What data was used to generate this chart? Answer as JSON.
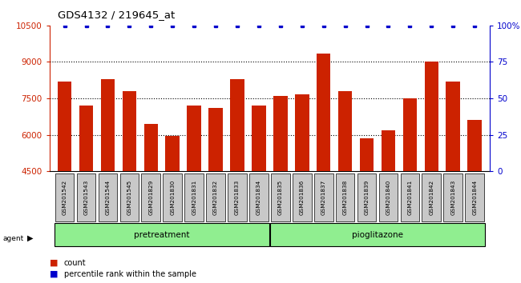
{
  "title": "GDS4132 / 219645_at",
  "samples": [
    "GSM201542",
    "GSM201543",
    "GSM201544",
    "GSM201545",
    "GSM201829",
    "GSM201830",
    "GSM201831",
    "GSM201832",
    "GSM201833",
    "GSM201834",
    "GSM201835",
    "GSM201836",
    "GSM201837",
    "GSM201838",
    "GSM201839",
    "GSM201840",
    "GSM201841",
    "GSM201842",
    "GSM201843",
    "GSM201844"
  ],
  "counts": [
    8200,
    7200,
    8300,
    7800,
    6450,
    5950,
    7200,
    7100,
    8300,
    7200,
    7600,
    7650,
    9350,
    7800,
    5850,
    6200,
    7500,
    9000,
    8200,
    6600
  ],
  "percentile_rank": 100,
  "groups": {
    "pretreatment": [
      0,
      9
    ],
    "pioglitazone": [
      10,
      19
    ]
  },
  "bar_color": "#cc2200",
  "percentile_color": "#0000cc",
  "ymin": 4500,
  "ymax": 10500,
  "yticks_left": [
    4500,
    6000,
    7500,
    9000,
    10500
  ],
  "yticks_right": [
    0,
    25,
    50,
    75,
    100
  ],
  "grid_values": [
    6000,
    7500,
    9000
  ],
  "tick_label_bg": "#c8c8c8",
  "group_color": "#90ee90",
  "group_border": "#000000",
  "bar_width": 0.65
}
